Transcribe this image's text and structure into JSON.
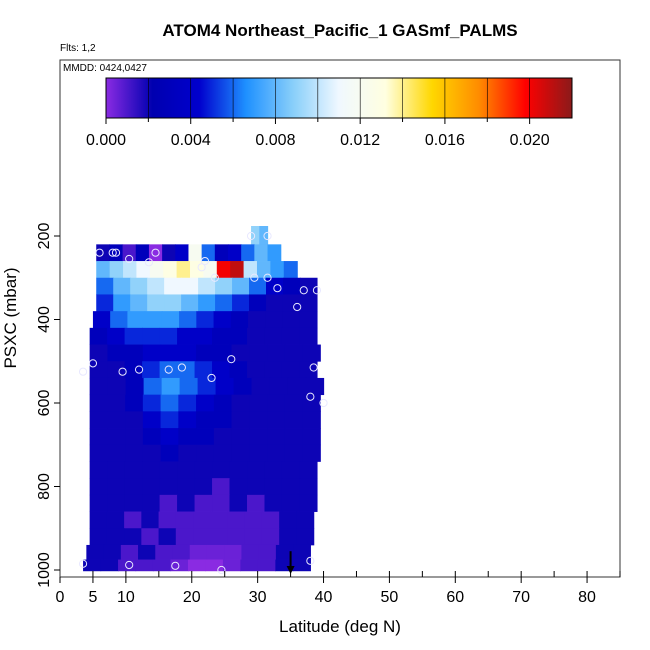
{
  "chart_data": {
    "type": "heatmap",
    "title": "ATOM4 Northeast_Pacific_1 GASmf_PALMS",
    "flights_note": "Flts: 1,2",
    "date_note": "MMDD: 0424,0427",
    "xlabel": "Latitude (deg N)",
    "ylabel": "PSXC (mbar)",
    "xlim": [
      0,
      85
    ],
    "ylim": [
      1000,
      0
    ],
    "x_ticks": [
      0,
      5,
      10,
      20,
      30,
      40,
      50,
      60,
      70,
      80
    ],
    "x_minor_ticks": [
      5,
      10,
      15,
      20,
      25,
      30,
      35,
      40,
      45,
      50,
      55,
      60,
      65,
      70,
      75,
      80,
      85
    ],
    "y_ticks": [
      200,
      400,
      600,
      800,
      1000
    ],
    "colorbar": {
      "min": 0.0,
      "max": 0.022,
      "tick_values": [
        0.0,
        0.004,
        0.008,
        0.012,
        0.016,
        0.02
      ],
      "tick_labels": [
        "0.000",
        "0.004",
        "0.008",
        "0.012",
        "0.016",
        "0.020"
      ],
      "colors": [
        "#8a2be2",
        "#0000b0",
        "#0000cd",
        "#1e90ff",
        "#87cefa",
        "#f0f8ff",
        "#ffffe0",
        "#ffd700",
        "#ff8c00",
        "#ff0000",
        "#8b1a1a"
      ]
    },
    "rows": [
      {
        "p": 200,
        "lat_start": 29,
        "lat_end": 31.5,
        "values": [
          0.009,
          0.008
        ]
      },
      {
        "p": 240,
        "lat_start": 5.5,
        "lat_end": 33.5,
        "values": [
          0.002,
          0.003,
          0.001,
          0.003,
          0.0,
          0.002,
          0.004,
          0.012,
          0.006,
          0.003,
          0.004,
          0.006,
          0.008,
          0.007
        ]
      },
      {
        "p": 280,
        "lat_start": 5.5,
        "lat_end": 36,
        "values": [
          0.008,
          0.009,
          0.01,
          0.011,
          0.012,
          0.013,
          0.014,
          0.013,
          0.012,
          0.02,
          0.021,
          0.01,
          0.008,
          0.007,
          0.006
        ]
      },
      {
        "p": 320,
        "lat_start": 5.5,
        "lat_end": 39,
        "values": [
          0.006,
          0.008,
          0.009,
          0.01,
          0.011,
          0.011,
          0.01,
          0.009,
          0.008,
          0.006,
          0.004,
          0.003,
          0.002
        ]
      },
      {
        "p": 360,
        "lat_start": 5.5,
        "lat_end": 39,
        "values": [
          0.005,
          0.007,
          0.008,
          0.009,
          0.009,
          0.008,
          0.007,
          0.006,
          0.005,
          0.003,
          0.002,
          0.002,
          0.002
        ]
      },
      {
        "p": 400,
        "lat_start": 5,
        "lat_end": 39,
        "values": [
          0.004,
          0.006,
          0.007,
          0.007,
          0.007,
          0.006,
          0.005,
          0.004,
          0.003,
          0.002,
          0.002,
          0.002,
          0.002
        ]
      },
      {
        "p": 440,
        "lat_start": 4.5,
        "lat_end": 39,
        "values": [
          0.003,
          0.004,
          0.005,
          0.005,
          0.005,
          0.004,
          0.004,
          0.003,
          0.003,
          0.002,
          0.002,
          0.002,
          0.002
        ]
      },
      {
        "p": 480,
        "lat_start": 4.5,
        "lat_end": 39.5,
        "values": [
          0.002,
          0.003,
          0.003,
          0.004,
          0.004,
          0.004,
          0.003,
          0.003,
          0.002,
          0.002,
          0.002,
          0.002,
          0.002
        ]
      },
      {
        "p": 520,
        "lat_start": 4.5,
        "lat_end": 39,
        "values": [
          0.002,
          0.002,
          0.003,
          0.005,
          0.006,
          0.006,
          0.005,
          0.004,
          0.003,
          0.002,
          0.002,
          0.002,
          0.002
        ]
      },
      {
        "p": 560,
        "lat_start": 4.5,
        "lat_end": 40,
        "values": [
          0.002,
          0.002,
          0.003,
          0.006,
          0.007,
          0.006,
          0.005,
          0.004,
          0.003,
          0.002,
          0.002,
          0.002,
          0.002
        ]
      },
      {
        "p": 600,
        "lat_start": 4.5,
        "lat_end": 39.5,
        "values": [
          0.002,
          0.002,
          0.003,
          0.005,
          0.006,
          0.005,
          0.004,
          0.003,
          0.002,
          0.002,
          0.002,
          0.002,
          0.002
        ]
      },
      {
        "p": 640,
        "lat_start": 4.5,
        "lat_end": 39.5,
        "values": [
          0.002,
          0.002,
          0.002,
          0.004,
          0.005,
          0.004,
          0.003,
          0.003,
          0.002,
          0.002,
          0.002,
          0.002,
          0.002
        ]
      },
      {
        "p": 680,
        "lat_start": 4.5,
        "lat_end": 39.5,
        "values": [
          0.002,
          0.002,
          0.002,
          0.003,
          0.004,
          0.003,
          0.003,
          0.002,
          0.002,
          0.002,
          0.002,
          0.002,
          0.002
        ]
      },
      {
        "p": 720,
        "lat_start": 4.5,
        "lat_end": 39.5,
        "values": [
          0.002,
          0.002,
          0.002,
          0.002,
          0.003,
          0.002,
          0.002,
          0.002,
          0.002,
          0.002,
          0.002,
          0.002,
          0.002
        ]
      },
      {
        "p": 760,
        "lat_start": 4.5,
        "lat_end": 39,
        "values": [
          0.002,
          0.002,
          0.002,
          0.002,
          0.002,
          0.002,
          0.002,
          0.002,
          0.002,
          0.002,
          0.002,
          0.002,
          0.002
        ]
      },
      {
        "p": 800,
        "lat_start": 4.5,
        "lat_end": 39,
        "values": [
          0.002,
          0.002,
          0.002,
          0.002,
          0.002,
          0.002,
          0.002,
          0.001,
          0.002,
          0.002,
          0.002,
          0.002,
          0.002
        ]
      },
      {
        "p": 840,
        "lat_start": 4.5,
        "lat_end": 39,
        "values": [
          0.002,
          0.002,
          0.002,
          0.002,
          0.001,
          0.002,
          0.001,
          0.001,
          0.002,
          0.001,
          0.002,
          0.002,
          0.002
        ]
      },
      {
        "p": 880,
        "lat_start": 4.5,
        "lat_end": 38.5,
        "values": [
          0.002,
          0.002,
          0.001,
          0.002,
          0.001,
          0.001,
          0.001,
          0.001,
          0.001,
          0.001,
          0.001,
          0.002,
          0.002
        ]
      },
      {
        "p": 920,
        "lat_start": 4.5,
        "lat_end": 38.5,
        "values": [
          0.002,
          0.002,
          0.002,
          0.001,
          0.002,
          0.001,
          0.001,
          0.001,
          0.001,
          0.001,
          0.001,
          0.002,
          0.002
        ]
      },
      {
        "p": 960,
        "lat_start": 4,
        "lat_end": 38,
        "values": [
          0.002,
          0.002,
          0.001,
          0.002,
          0.001,
          0.001,
          0.0005,
          0.0005,
          0.0005,
          0.001,
          0.001,
          0.002,
          0.002
        ]
      },
      {
        "p": 990,
        "lat_start": 3.5,
        "lat_end": 38,
        "values": [
          0.002,
          0.002,
          0.001,
          0.001,
          0.001,
          0.0005,
          0.0,
          0.0,
          0.0005,
          0.001,
          0.001,
          0.002,
          0.002
        ]
      }
    ],
    "points": [
      [
        29,
        200
      ],
      [
        31.5,
        200
      ],
      [
        6,
        240
      ],
      [
        8,
        240
      ],
      [
        8.5,
        240
      ],
      [
        14.5,
        240
      ],
      [
        10.5,
        255
      ],
      [
        13.5,
        263
      ],
      [
        22,
        260
      ],
      [
        21.5,
        275
      ],
      [
        23.5,
        300
      ],
      [
        29.5,
        300
      ],
      [
        31.5,
        300
      ],
      [
        33,
        325
      ],
      [
        37,
        330
      ],
      [
        39,
        330
      ],
      [
        36,
        370
      ],
      [
        5,
        505
      ],
      [
        3.5,
        525
      ],
      [
        9.5,
        525
      ],
      [
        12,
        520
      ],
      [
        16.5,
        520
      ],
      [
        18.5,
        515
      ],
      [
        23,
        540
      ],
      [
        26,
        495
      ],
      [
        38.5,
        515
      ],
      [
        38,
        585
      ],
      [
        40,
        600
      ],
      [
        3.5,
        985
      ],
      [
        10.5,
        988
      ],
      [
        17.5,
        990
      ],
      [
        24.5,
        1000
      ],
      [
        38,
        978
      ]
    ],
    "arrow": {
      "lat": 35,
      "p_from": 955,
      "p_to": 1000
    }
  }
}
